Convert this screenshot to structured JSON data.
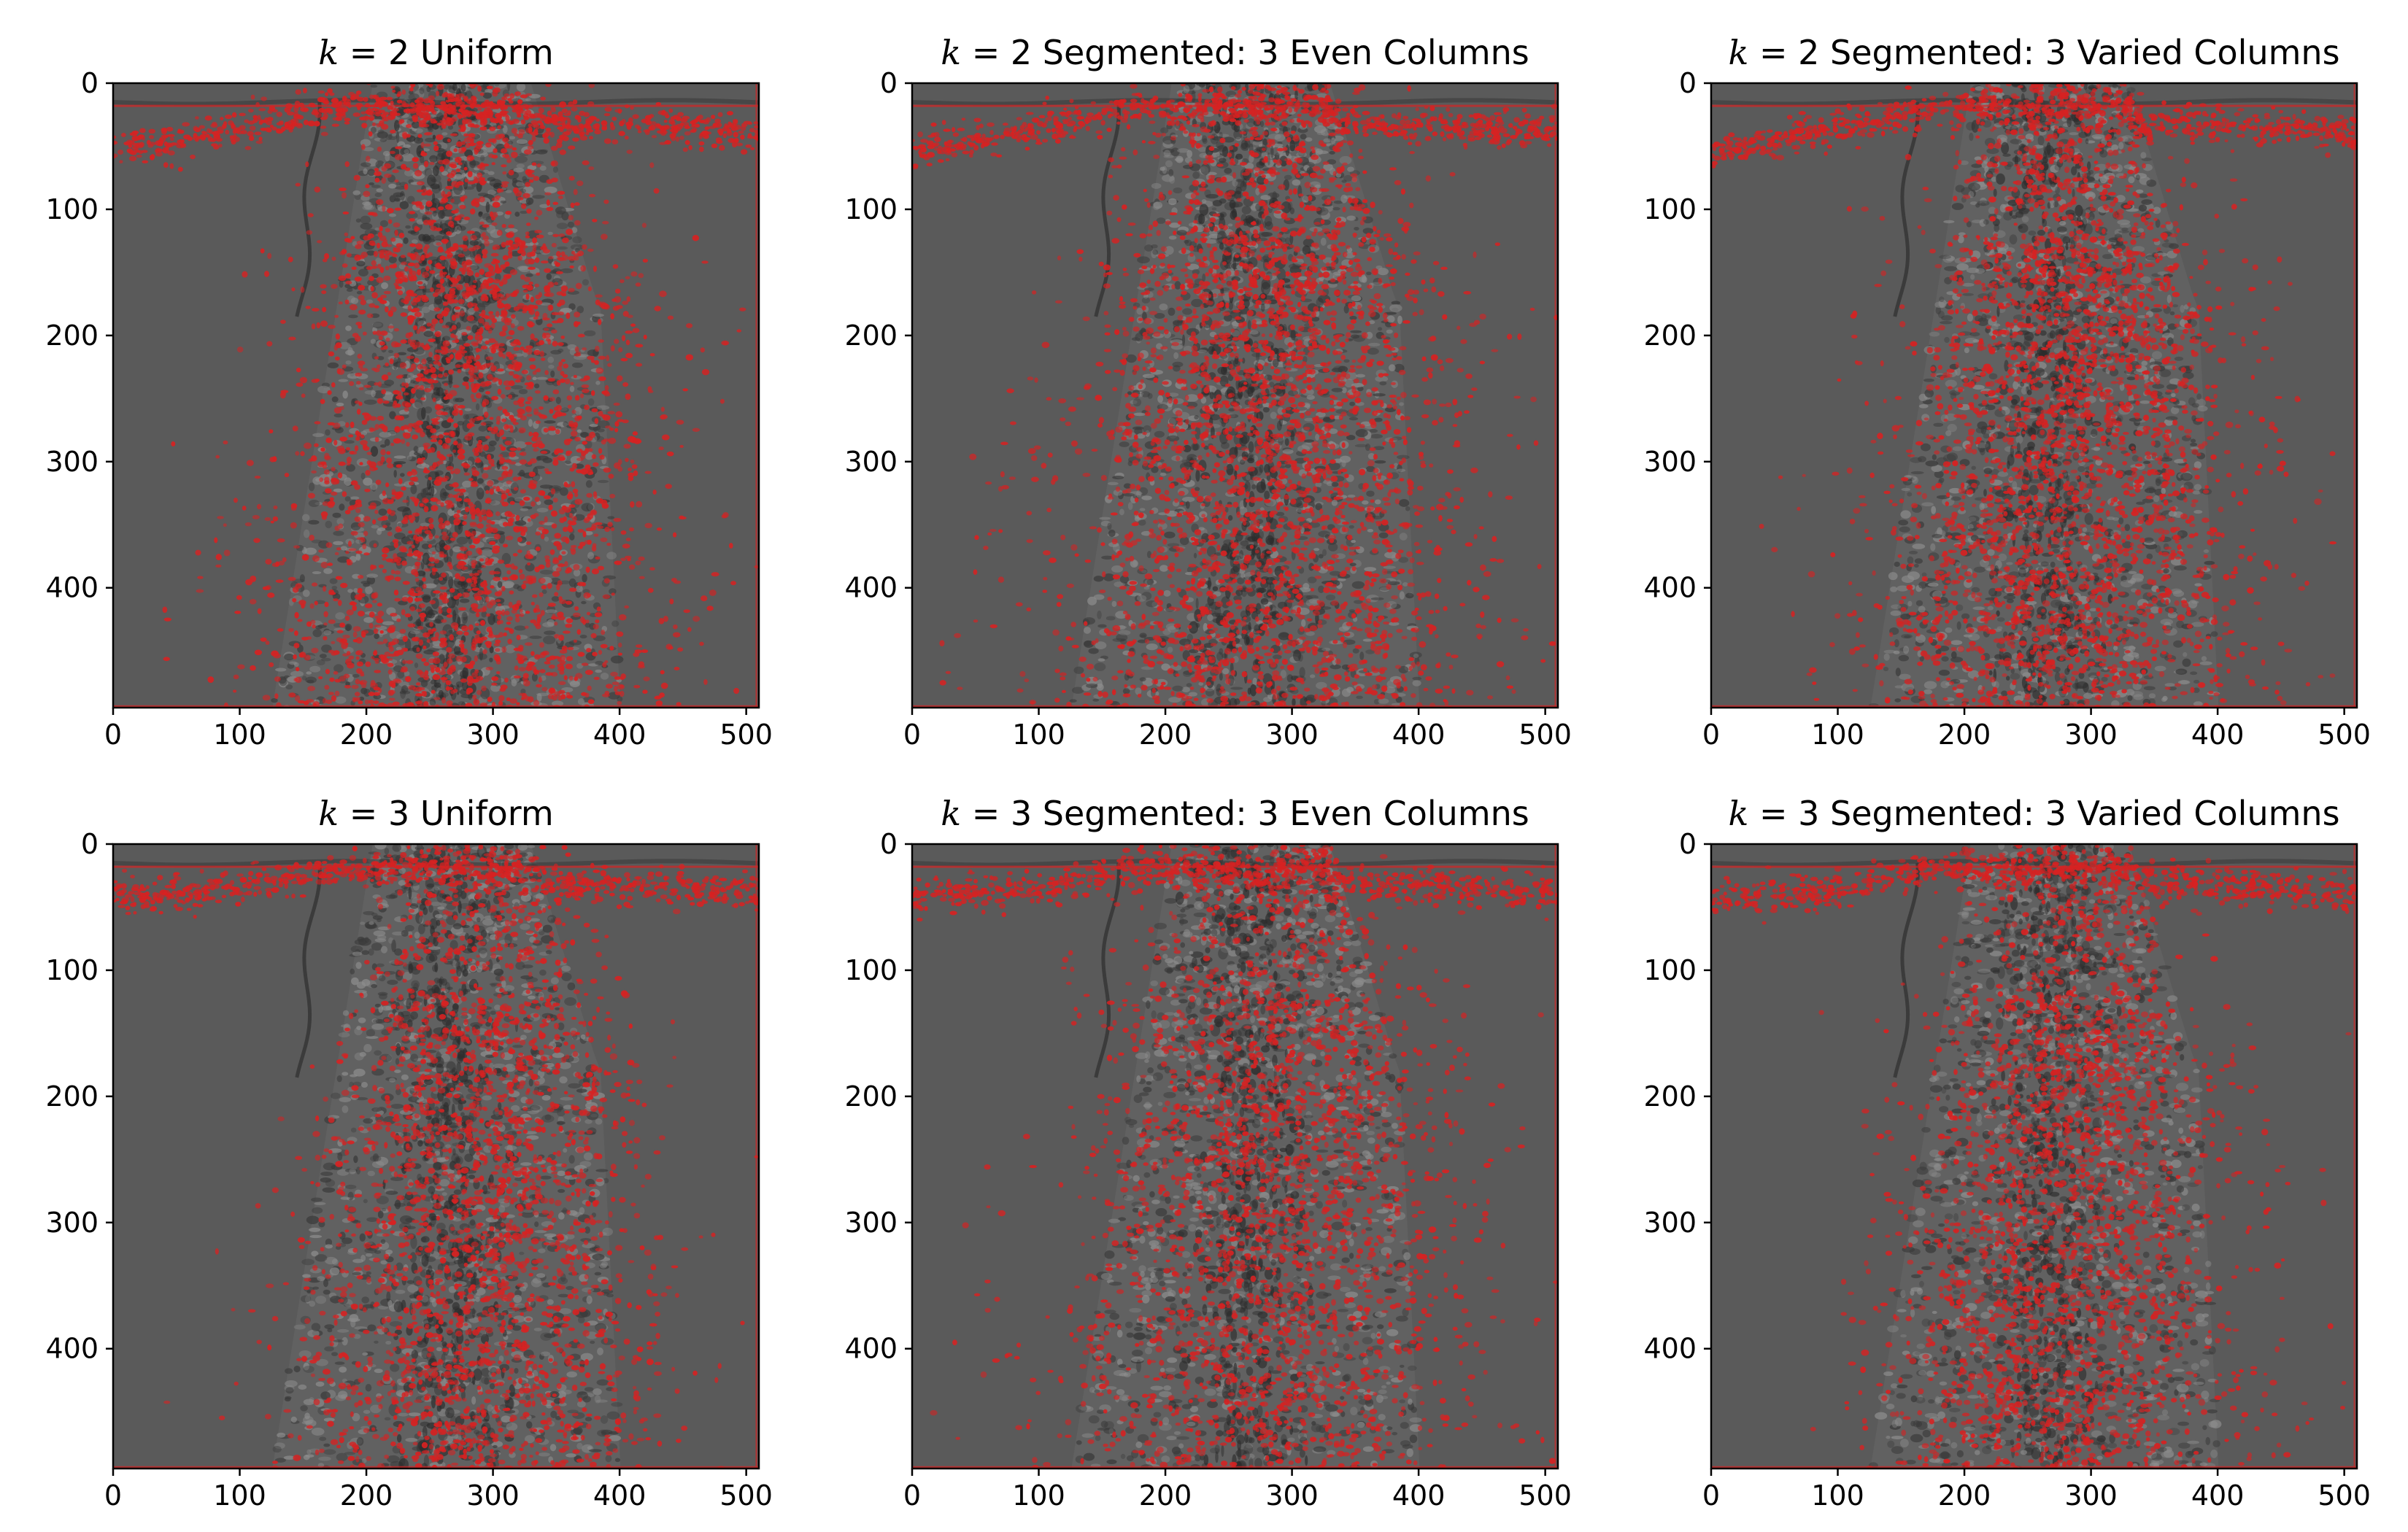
{
  "chart_data": [
    {
      "type": "image",
      "title_k": "k",
      "title_suffix": " = 2 Uniform",
      "k": 2,
      "mode": "uniform",
      "xlim": [
        0,
        510
      ],
      "ylim": [
        495,
        0
      ],
      "xticks": [
        0,
        100,
        200,
        300,
        400,
        500
      ],
      "yticks": [
        0,
        100,
        200,
        300,
        400
      ],
      "overlay_color": "#d62222"
    },
    {
      "type": "image",
      "title_k": "k",
      "title_suffix": " = 2 Segmented: 3 Even Columns",
      "k": 2,
      "mode": "even",
      "xlim": [
        0,
        510
      ],
      "ylim": [
        495,
        0
      ],
      "xticks": [
        0,
        100,
        200,
        300,
        400,
        500
      ],
      "yticks": [
        0,
        100,
        200,
        300,
        400
      ],
      "overlay_color": "#d62222"
    },
    {
      "type": "image",
      "title_k": "k",
      "title_suffix": " = 2 Segmented: 3 Varied Columns",
      "k": 2,
      "mode": "varied",
      "xlim": [
        0,
        510
      ],
      "ylim": [
        495,
        0
      ],
      "xticks": [
        0,
        100,
        200,
        300,
        400,
        500
      ],
      "yticks": [
        0,
        100,
        200,
        300,
        400
      ],
      "overlay_color": "#d62222"
    },
    {
      "type": "image",
      "title_k": "k",
      "title_suffix": " = 3 Uniform",
      "k": 3,
      "mode": "uniform",
      "xlim": [
        0,
        510
      ],
      "ylim": [
        495,
        0
      ],
      "xticks": [
        0,
        100,
        200,
        300,
        400,
        500
      ],
      "yticks": [
        0,
        100,
        200,
        300,
        400
      ],
      "overlay_color": "#d62222"
    },
    {
      "type": "image",
      "title_k": "k",
      "title_suffix": " = 3 Segmented: 3 Even Columns",
      "k": 3,
      "mode": "even",
      "xlim": [
        0,
        510
      ],
      "ylim": [
        495,
        0
      ],
      "xticks": [
        0,
        100,
        200,
        300,
        400,
        500
      ],
      "yticks": [
        0,
        100,
        200,
        300,
        400
      ],
      "overlay_color": "#d62222"
    },
    {
      "type": "image",
      "title_k": "k",
      "title_suffix": " = 3 Segmented: 3 Varied Columns",
      "k": 3,
      "mode": "varied",
      "xlim": [
        0,
        510
      ],
      "ylim": [
        495,
        0
      ],
      "xticks": [
        0,
        100,
        200,
        300,
        400,
        500
      ],
      "yticks": [
        0,
        100,
        200,
        300,
        400
      ],
      "overlay_color": "#d62222"
    }
  ],
  "colors": {
    "background_gray": "#5a5a5a",
    "dark_band": "#2c2c2c",
    "light_speckle": "#9a9a9a",
    "overlay_red": "#d62222",
    "axis": "#000000"
  }
}
